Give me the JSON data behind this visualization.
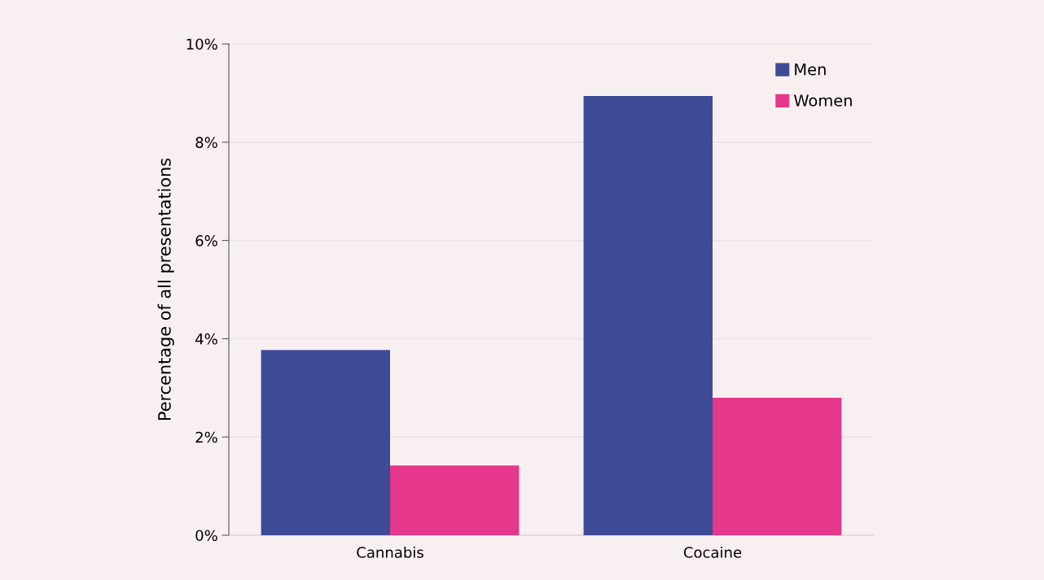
{
  "chart_data": {
    "type": "bar",
    "ylabel": "Percentage of all presentations",
    "categories": [
      "Cannabis",
      "Cocaine"
    ],
    "series": [
      {
        "name": "Men",
        "color": "#3d4a96",
        "values": [
          3.77,
          8.94
        ]
      },
      {
        "name": "Women",
        "color": "#e5378b",
        "values": [
          1.42,
          2.8
        ]
      }
    ],
    "ylim": [
      0,
      10
    ],
    "yticks": [
      {
        "value": 0,
        "label": "0%"
      },
      {
        "value": 2,
        "label": "2%"
      },
      {
        "value": 4,
        "label": "4%"
      },
      {
        "value": 6,
        "label": "6%"
      },
      {
        "value": 8,
        "label": "8%"
      },
      {
        "value": 10,
        "label": "10%"
      }
    ],
    "grid": "y",
    "legend": "top right"
  }
}
